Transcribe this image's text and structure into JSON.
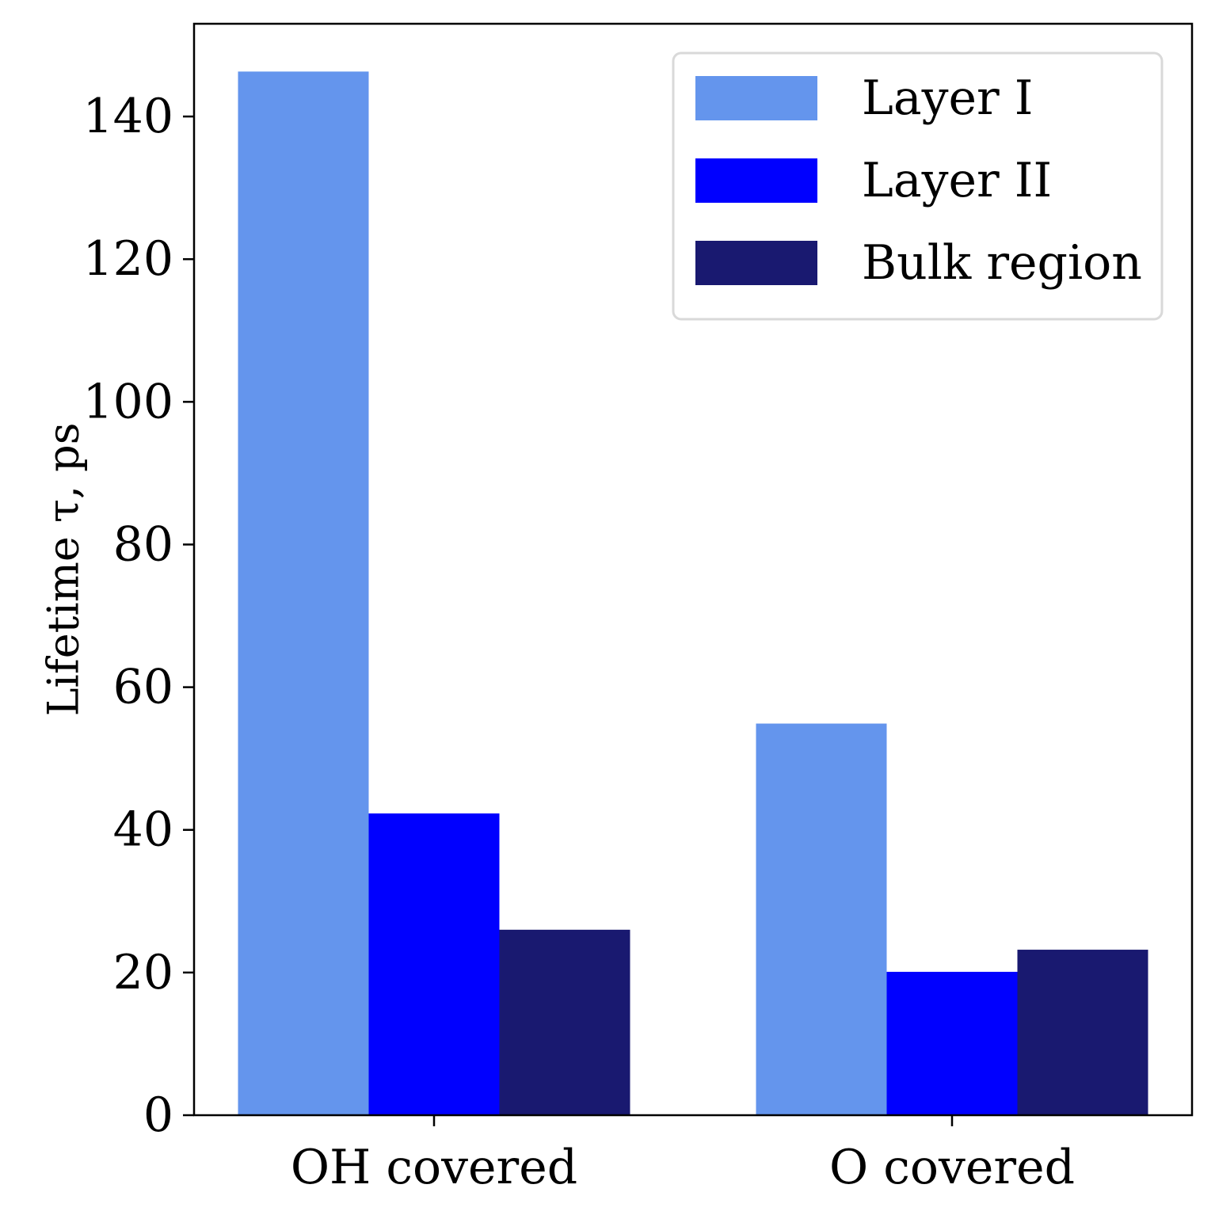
{
  "chart_data": {
    "type": "bar",
    "categories": [
      "OH covered",
      "O covered"
    ],
    "series": [
      {
        "name": "Layer I",
        "color": "#6495ED",
        "values": [
          146.3,
          54.9
        ]
      },
      {
        "name": "Layer II",
        "color": "#0000FF",
        "values": [
          42.3,
          20.1
        ]
      },
      {
        "name": "Bulk region",
        "color": "#191970",
        "values": [
          26.0,
          23.2
        ]
      }
    ],
    "ylabel": "Lifetime τ,  ps",
    "ylim": [
      0,
      153
    ],
    "yticks": [
      0,
      20,
      40,
      60,
      80,
      100,
      120,
      140
    ],
    "legend_position": "top-right",
    "grid": false
  }
}
